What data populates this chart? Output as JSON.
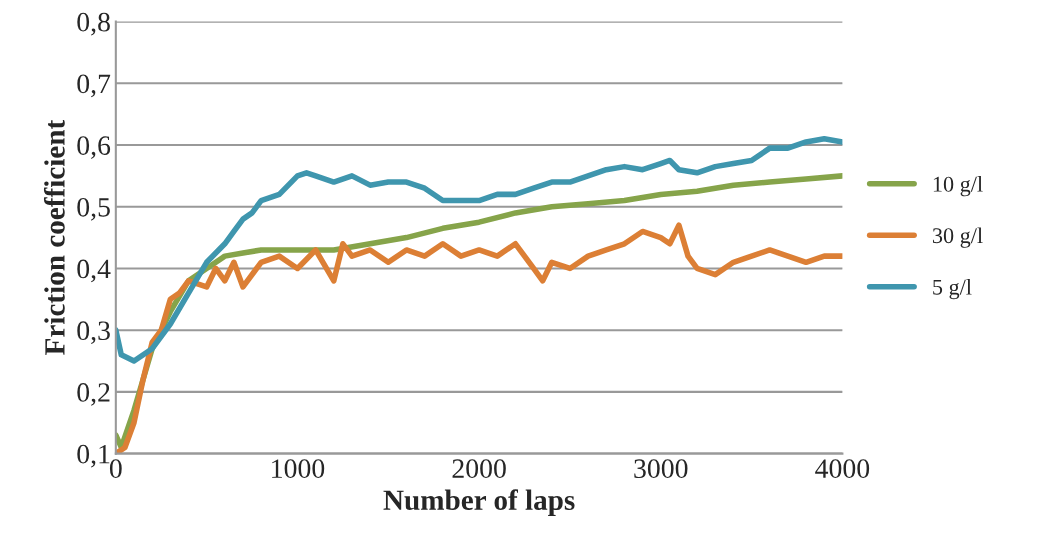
{
  "chart_data": {
    "type": "line",
    "xlabel": "Number of laps",
    "ylabel": "Friction coefficient",
    "xlim": [
      0,
      4000
    ],
    "xticks": [
      0,
      1000,
      2000,
      3000,
      4000
    ],
    "ylim": [
      0.1,
      0.8
    ],
    "yticks": [
      {
        "value": 0.1,
        "label": "0,1"
      },
      {
        "value": 0.2,
        "label": "0,2"
      },
      {
        "value": 0.3,
        "label": "0,3"
      },
      {
        "value": 0.4,
        "label": "0,4"
      },
      {
        "value": 0.5,
        "label": "0,5"
      },
      {
        "value": 0.6,
        "label": "0,6"
      },
      {
        "value": 0.7,
        "label": "0,7"
      },
      {
        "value": 0.8,
        "label": "0,8"
      }
    ],
    "grid": "y",
    "legend": "right",
    "marker": "none",
    "line_style": "solid",
    "series": [
      {
        "name": "10 g/l",
        "color": "#86a44a",
        "x": [
          0,
          30,
          100,
          150,
          200,
          300,
          400,
          500,
          600,
          700,
          800,
          1000,
          1200,
          1400,
          1600,
          1800,
          2000,
          2200,
          2400,
          2600,
          2800,
          3000,
          3200,
          3400,
          3600,
          3800,
          4000
        ],
        "values": [
          0.13,
          0.11,
          0.17,
          0.22,
          0.27,
          0.33,
          0.38,
          0.4,
          0.42,
          0.425,
          0.43,
          0.43,
          0.43,
          0.44,
          0.45,
          0.465,
          0.475,
          0.49,
          0.5,
          0.505,
          0.51,
          0.52,
          0.525,
          0.535,
          0.54,
          0.545,
          0.55
        ]
      },
      {
        "name": "30 g/l",
        "color": "#dc7f35",
        "x": [
          0,
          50,
          100,
          150,
          200,
          250,
          300,
          350,
          400,
          500,
          550,
          600,
          650,
          700,
          800,
          900,
          1000,
          1100,
          1200,
          1250,
          1300,
          1400,
          1500,
          1600,
          1700,
          1800,
          1900,
          2000,
          2100,
          2200,
          2300,
          2350,
          2400,
          2500,
          2600,
          2700,
          2800,
          2900,
          3000,
          3050,
          3100,
          3150,
          3200,
          3300,
          3400,
          3500,
          3600,
          3700,
          3800,
          3900,
          4000
        ],
        "values": [
          0.1,
          0.11,
          0.15,
          0.22,
          0.28,
          0.3,
          0.35,
          0.36,
          0.38,
          0.37,
          0.4,
          0.38,
          0.41,
          0.37,
          0.41,
          0.42,
          0.4,
          0.43,
          0.38,
          0.44,
          0.42,
          0.43,
          0.41,
          0.43,
          0.42,
          0.44,
          0.42,
          0.43,
          0.42,
          0.44,
          0.4,
          0.38,
          0.41,
          0.4,
          0.42,
          0.43,
          0.44,
          0.46,
          0.45,
          0.44,
          0.47,
          0.42,
          0.4,
          0.39,
          0.41,
          0.42,
          0.43,
          0.42,
          0.41,
          0.42,
          0.42
        ]
      },
      {
        "name": "5 g/l",
        "color": "#3f96ae",
        "x": [
          0,
          30,
          100,
          200,
          300,
          400,
          500,
          600,
          650,
          700,
          750,
          800,
          900,
          1000,
          1050,
          1100,
          1200,
          1300,
          1400,
          1500,
          1600,
          1700,
          1800,
          1900,
          2000,
          2100,
          2200,
          2300,
          2400,
          2500,
          2600,
          2700,
          2800,
          2900,
          3000,
          3050,
          3100,
          3200,
          3300,
          3400,
          3500,
          3600,
          3700,
          3800,
          3900,
          4000
        ],
        "values": [
          0.3,
          0.26,
          0.25,
          0.27,
          0.31,
          0.36,
          0.41,
          0.44,
          0.46,
          0.48,
          0.49,
          0.51,
          0.52,
          0.55,
          0.555,
          0.55,
          0.54,
          0.55,
          0.535,
          0.54,
          0.54,
          0.53,
          0.51,
          0.51,
          0.51,
          0.52,
          0.52,
          0.53,
          0.54,
          0.54,
          0.55,
          0.56,
          0.565,
          0.56,
          0.57,
          0.575,
          0.56,
          0.555,
          0.565,
          0.57,
          0.575,
          0.595,
          0.595,
          0.605,
          0.61,
          0.605
        ]
      }
    ]
  }
}
